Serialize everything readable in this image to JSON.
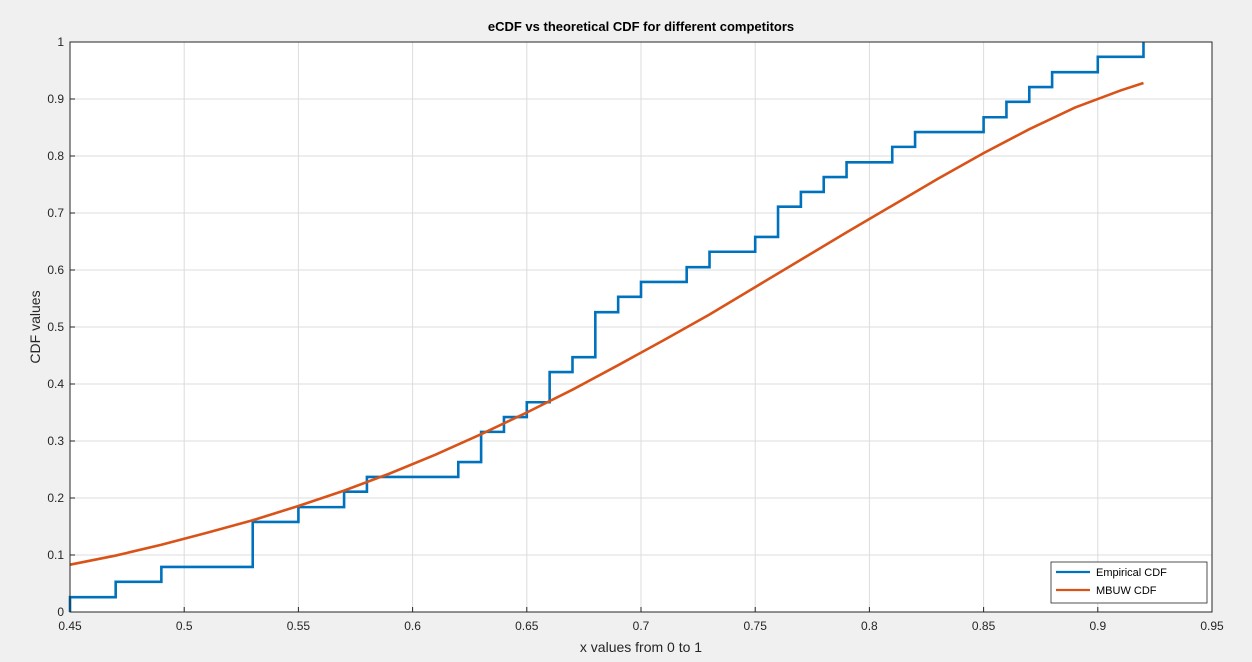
{
  "chart_data": {
    "type": "line",
    "title": "eCDF vs theoretical CDF for different competitors",
    "xlabel": "x values from 0 to 1",
    "ylabel": "CDF values",
    "xlim": [
      0.45,
      0.95
    ],
    "ylim": [
      0,
      1
    ],
    "xticks": [
      "0.45",
      "0.5",
      "0.55",
      "0.6",
      "0.65",
      "0.7",
      "0.75",
      "0.8",
      "0.85",
      "0.9",
      "0.95"
    ],
    "yticks": [
      "0",
      "0.1",
      "0.2",
      "0.3",
      "0.4",
      "0.5",
      "0.6",
      "0.7",
      "0.8",
      "0.9",
      "1"
    ],
    "grid": true,
    "legend_position": "bottom-right",
    "series": [
      {
        "name": "Empirical CDF",
        "color": "#0072BD",
        "style": "step",
        "x": [
          0.45,
          0.47,
          0.49,
          0.53,
          0.55,
          0.57,
          0.58,
          0.62,
          0.63,
          0.64,
          0.65,
          0.66,
          0.67,
          0.68,
          0.69,
          0.7,
          0.72,
          0.73,
          0.75,
          0.76,
          0.77,
          0.78,
          0.79,
          0.81,
          0.82,
          0.85,
          0.86,
          0.87,
          0.88,
          0.9,
          0.92
        ],
        "y": [
          0.026,
          0.053,
          0.079,
          0.158,
          0.184,
          0.211,
          0.237,
          0.263,
          0.316,
          0.342,
          0.368,
          0.421,
          0.447,
          0.526,
          0.553,
          0.579,
          0.605,
          0.632,
          0.658,
          0.711,
          0.737,
          0.763,
          0.789,
          0.816,
          0.842,
          0.868,
          0.895,
          0.921,
          0.947,
          0.974,
          1.0
        ]
      },
      {
        "name": "MBUW CDF",
        "color": "#D95319",
        "style": "line",
        "x": [
          0.45,
          0.47,
          0.49,
          0.51,
          0.53,
          0.55,
          0.57,
          0.59,
          0.61,
          0.63,
          0.65,
          0.67,
          0.69,
          0.71,
          0.73,
          0.75,
          0.77,
          0.79,
          0.81,
          0.83,
          0.85,
          0.87,
          0.89,
          0.91,
          0.92
        ],
        "y": [
          0.083,
          0.099,
          0.118,
          0.139,
          0.161,
          0.186,
          0.213,
          0.243,
          0.276,
          0.312,
          0.35,
          0.39,
          0.433,
          0.477,
          0.522,
          0.57,
          0.618,
          0.666,
          0.713,
          0.76,
          0.805,
          0.847,
          0.885,
          0.915,
          0.928
        ]
      }
    ]
  }
}
